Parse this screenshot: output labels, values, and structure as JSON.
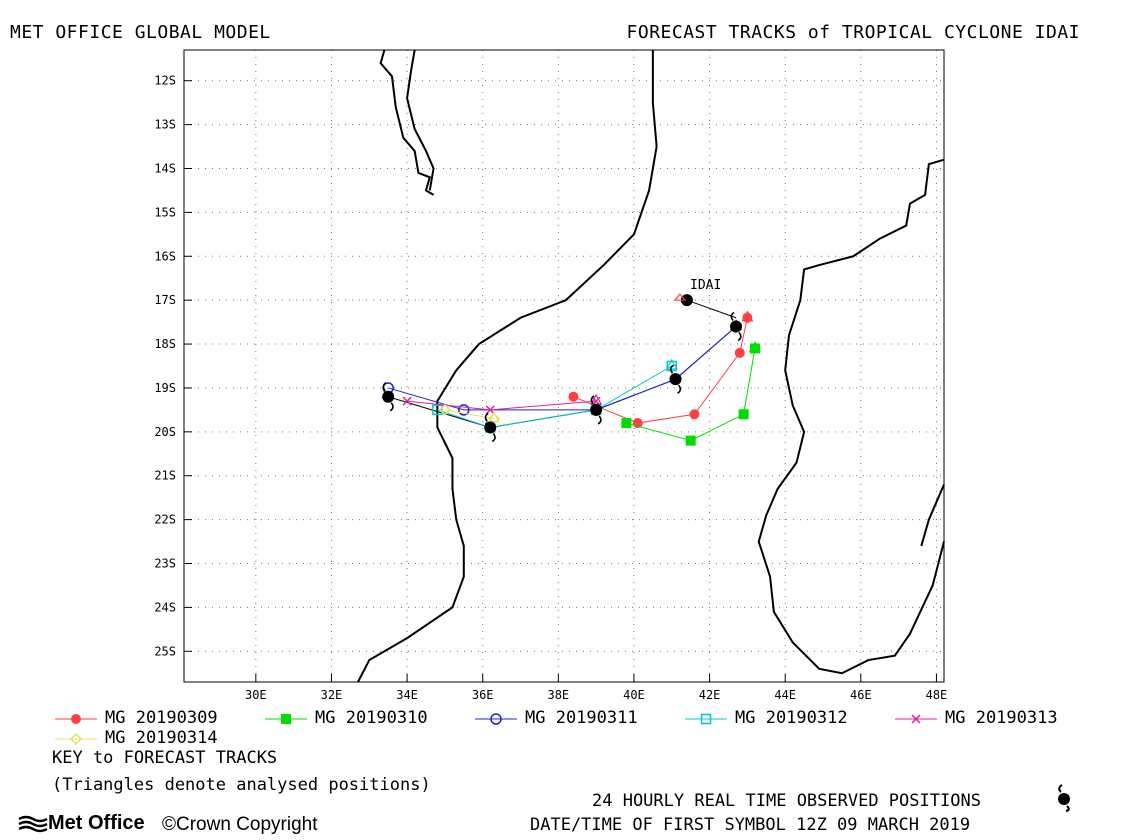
{
  "header": {
    "left_title": "MET OFFICE GLOBAL MODEL",
    "right_title": "FORECAST TRACKS of TROPICAL CYCLONE IDAI"
  },
  "map": {
    "storm_label": "IDAI",
    "lat_ticks": [
      "12S",
      "13S",
      "14S",
      "15S",
      "16S",
      "17S",
      "18S",
      "19S",
      "20S",
      "21S",
      "22S",
      "23S",
      "24S",
      "25S"
    ],
    "lon_ticks": [
      "30E",
      "32E",
      "34E",
      "36E",
      "38E",
      "40E",
      "42E",
      "44E",
      "46E",
      "48E"
    ],
    "lat_range": [
      -25.7,
      -11.3
    ],
    "lon_range": [
      28.1,
      48.2
    ],
    "grid": "dotted"
  },
  "legend": {
    "items": [
      {
        "label": "MG 20190309",
        "color": "#ff4040",
        "marker": "filled-circle"
      },
      {
        "label": "MG 20190310",
        "color": "#00dd00",
        "marker": "filled-square"
      },
      {
        "label": "MG 20190311",
        "color": "#2020cc",
        "marker": "open-circle"
      },
      {
        "label": "MG 20190312",
        "color": "#00c8d0",
        "marker": "open-square"
      },
      {
        "label": "MG 20190313",
        "color": "#e020a0",
        "marker": "cross"
      },
      {
        "label": "MG 20190314",
        "color": "#e8e060",
        "marker": "open-diamond"
      }
    ],
    "key_title": "KEY to FORECAST TRACKS",
    "key_note": "(Triangles denote analysed positions)"
  },
  "footer": {
    "observed_label": "24 HOURLY REAL TIME OBSERVED POSITIONS",
    "first_symbol": "DATE/TIME OF FIRST SYMBOL 12Z 09 MARCH 2019",
    "logo_text": "Met Office",
    "copyright": "©Crown Copyright"
  },
  "chart_data": {
    "type": "map-tracks",
    "observed_track": [
      [
        42.7,
        -17.6
      ],
      [
        41.1,
        -18.8
      ],
      [
        39.0,
        -19.5
      ],
      [
        36.2,
        -19.9
      ],
      [
        33.5,
        -19.2
      ]
    ],
    "forecast_tracks": [
      {
        "name": "MG 20190309",
        "points": [
          [
            43.0,
            -17.4
          ],
          [
            42.8,
            -18.2
          ],
          [
            41.6,
            -19.6
          ],
          [
            40.1,
            -19.8
          ],
          [
            38.4,
            -19.2
          ]
        ]
      },
      {
        "name": "MG 20190310",
        "points": [
          [
            43.2,
            -18.1
          ],
          [
            42.9,
            -19.6
          ],
          [
            41.5,
            -20.2
          ],
          [
            39.8,
            -19.8
          ]
        ]
      },
      {
        "name": "MG 20190311",
        "points": [
          [
            42.7,
            -17.6
          ],
          [
            41.1,
            -18.8
          ],
          [
            39.0,
            -19.5
          ],
          [
            35.5,
            -19.5
          ],
          [
            33.5,
            -19.0
          ]
        ]
      },
      {
        "name": "MG 20190312",
        "points": [
          [
            41.0,
            -18.5
          ],
          [
            39.0,
            -19.5
          ],
          [
            36.2,
            -19.9
          ],
          [
            34.8,
            -19.5
          ]
        ]
      },
      {
        "name": "MG 20190313",
        "points": [
          [
            39.0,
            -19.3
          ],
          [
            36.2,
            -19.5
          ],
          [
            34.0,
            -19.3
          ]
        ]
      },
      {
        "name": "MG 20190314",
        "points": [
          [
            36.3,
            -19.7
          ],
          [
            35.0,
            -19.5
          ]
        ]
      }
    ]
  }
}
